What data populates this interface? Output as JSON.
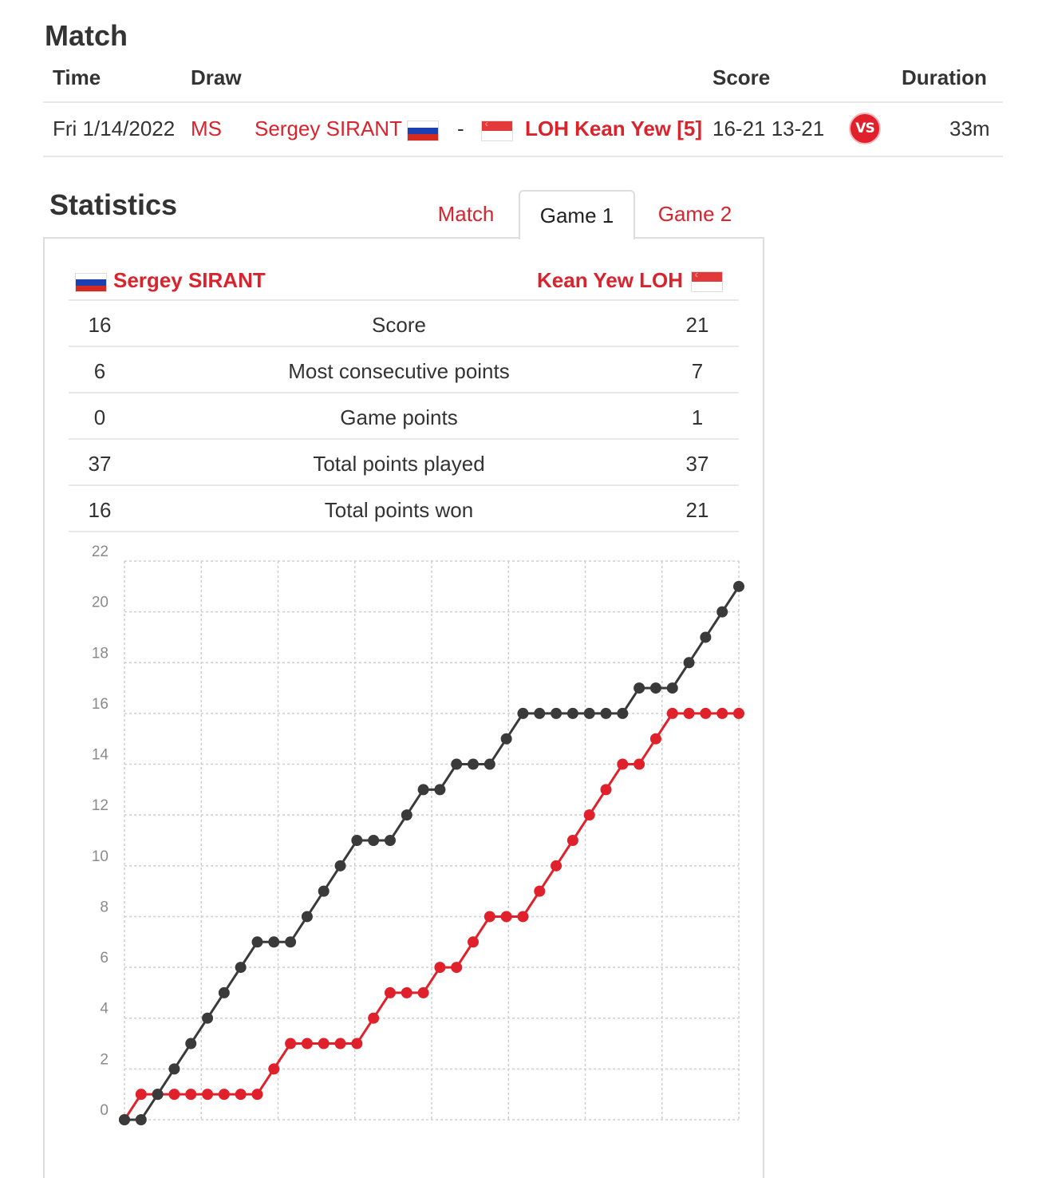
{
  "match_section": {
    "title": "Match",
    "headers": {
      "time": "Time",
      "draw": "Draw",
      "score": "Score",
      "duration": "Duration"
    },
    "row": {
      "time": "Fri 1/14/2022",
      "draw": "MS",
      "player1": "Sergey SIRANT",
      "player1_flag": "russia-flag",
      "separator": "-",
      "player2": "LOH Kean Yew [5]",
      "player2_flag": "singapore-flag",
      "score": "16-21 13-21",
      "vs_label": "VS",
      "duration": "33m"
    }
  },
  "statistics": {
    "title": "Statistics",
    "tabs": [
      {
        "label": "Match",
        "active": false
      },
      {
        "label": "Game 1",
        "active": true
      },
      {
        "label": "Game 2",
        "active": false
      }
    ],
    "left_player": "Sergey SIRANT",
    "right_player": "Kean Yew LOH",
    "rows": [
      {
        "left": "16",
        "label": "Score",
        "right": "21"
      },
      {
        "left": "6",
        "label": "Most consecutive points",
        "right": "7"
      },
      {
        "left": "0",
        "label": "Game points",
        "right": "1"
      },
      {
        "left": "37",
        "label": "Total points played",
        "right": "37"
      },
      {
        "left": "16",
        "label": "Total points won",
        "right": "21"
      }
    ]
  },
  "colors": {
    "accent": "#d9232d",
    "dark_series": "#3a3a3a",
    "red_series": "#e0202a"
  },
  "chart_data": {
    "type": "line",
    "title": "",
    "xlabel": "",
    "ylabel": "",
    "ylim": [
      0,
      22
    ],
    "y_ticks": [
      0,
      2,
      4,
      6,
      8,
      10,
      12,
      14,
      16,
      18,
      20,
      22
    ],
    "grid": true,
    "x": [
      0,
      1,
      2,
      3,
      4,
      5,
      6,
      7,
      8,
      9,
      10,
      11,
      12,
      13,
      14,
      15,
      16,
      17,
      18,
      19,
      20,
      21,
      22,
      23,
      24,
      25,
      26,
      27,
      28,
      29,
      30,
      31,
      32,
      33,
      34,
      35,
      36,
      37
    ],
    "series": [
      {
        "color": "#e0202a",
        "values": [
          0,
          1,
          1,
          1,
          1,
          1,
          1,
          1,
          1,
          2,
          3,
          3,
          3,
          3,
          3,
          4,
          5,
          5,
          5,
          6,
          6,
          7,
          8,
          8,
          8,
          9,
          10,
          11,
          12,
          13,
          14,
          14,
          15,
          16,
          16,
          16,
          16,
          16
        ]
      },
      {
        "color": "#3a3a3a",
        "values": [
          0,
          0,
          1,
          2,
          3,
          4,
          5,
          6,
          7,
          7,
          7,
          8,
          9,
          10,
          11,
          11,
          11,
          12,
          13,
          13,
          14,
          14,
          14,
          15,
          16,
          16,
          16,
          16,
          16,
          16,
          16,
          17,
          17,
          17,
          18,
          19,
          20,
          21
        ]
      }
    ]
  }
}
